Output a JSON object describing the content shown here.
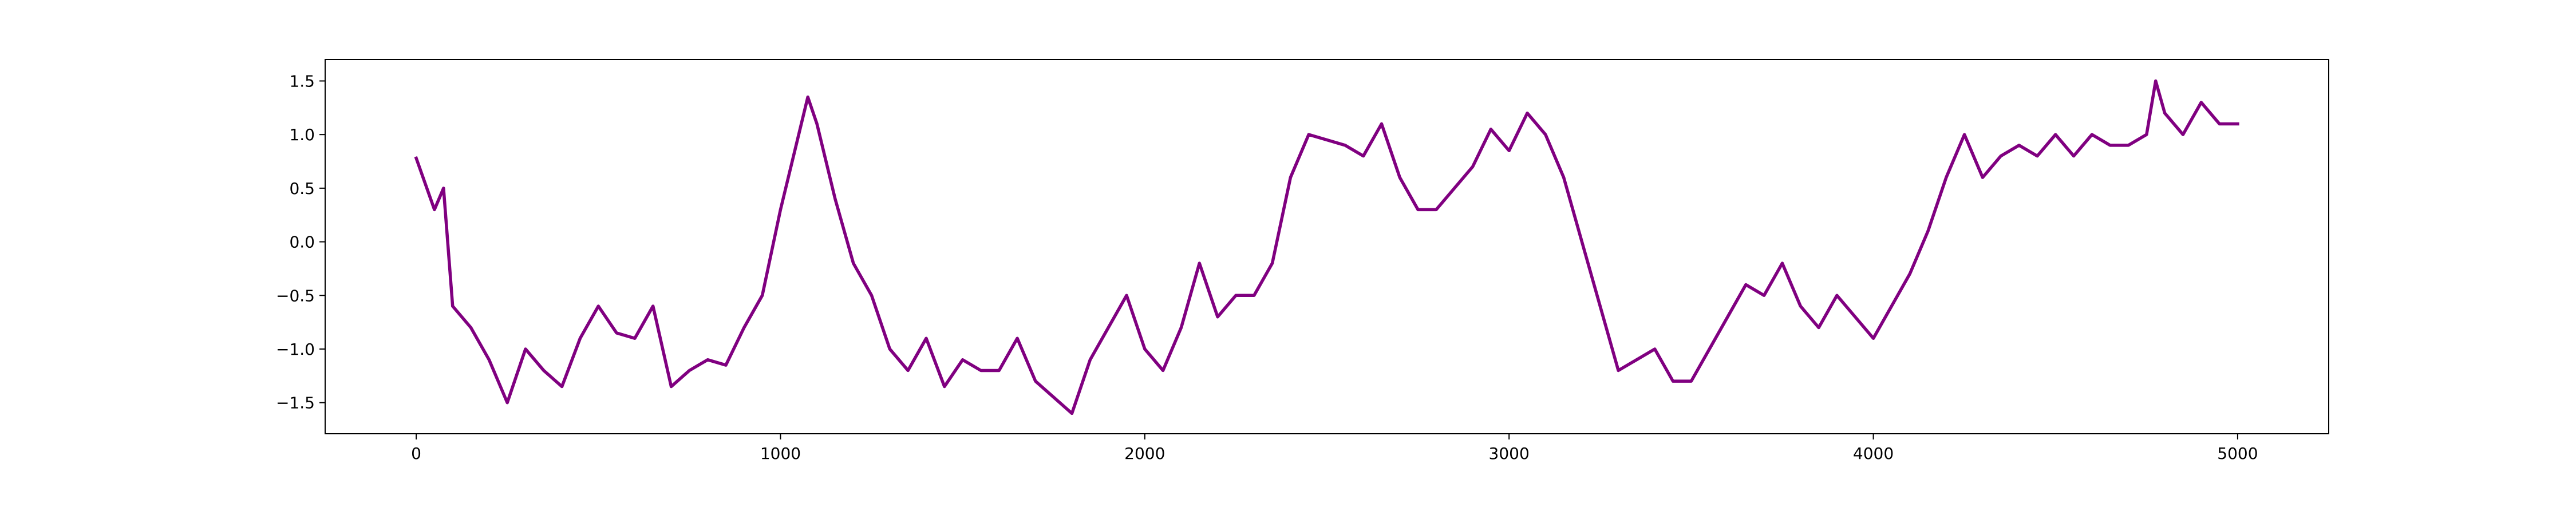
{
  "chart_data": {
    "type": "line",
    "x": [
      0,
      50,
      75,
      100,
      150,
      200,
      250,
      300,
      350,
      400,
      450,
      500,
      550,
      600,
      650,
      700,
      750,
      800,
      850,
      900,
      950,
      1000,
      1050,
      1075,
      1100,
      1150,
      1200,
      1250,
      1300,
      1350,
      1400,
      1450,
      1500,
      1550,
      1600,
      1650,
      1700,
      1750,
      1800,
      1850,
      1900,
      1950,
      2000,
      2050,
      2100,
      2150,
      2200,
      2250,
      2300,
      2350,
      2400,
      2450,
      2500,
      2550,
      2600,
      2650,
      2700,
      2750,
      2800,
      2850,
      2900,
      2950,
      3000,
      3050,
      3100,
      3150,
      3200,
      3250,
      3300,
      3350,
      3400,
      3450,
      3500,
      3550,
      3600,
      3650,
      3700,
      3750,
      3800,
      3850,
      3900,
      3950,
      4000,
      4050,
      4100,
      4150,
      4200,
      4250,
      4300,
      4350,
      4400,
      4450,
      4500,
      4550,
      4600,
      4650,
      4700,
      4750,
      4775,
      4800,
      4850,
      4900,
      4950,
      5000
    ],
    "series": [
      {
        "color": "#800080",
        "values": [
          0.78,
          0.3,
          0.5,
          -0.6,
          -0.8,
          -1.1,
          -1.5,
          -1.0,
          -1.2,
          -1.35,
          -0.9,
          -0.6,
          -0.85,
          -0.9,
          -0.6,
          -1.35,
          -1.2,
          -1.1,
          -1.15,
          -0.8,
          -0.5,
          0.3,
          1.0,
          1.35,
          1.1,
          0.4,
          -0.2,
          -0.5,
          -1.0,
          -1.2,
          -0.9,
          -1.35,
          -1.1,
          -1.2,
          -1.2,
          -0.9,
          -1.3,
          -1.45,
          -1.6,
          -1.1,
          -0.8,
          -0.5,
          -1.0,
          -1.2,
          -0.8,
          -0.2,
          -0.7,
          -0.5,
          -0.5,
          -0.2,
          0.6,
          1.0,
          0.95,
          0.9,
          0.8,
          1.1,
          0.6,
          0.3,
          0.3,
          0.5,
          0.7,
          1.05,
          0.85,
          1.2,
          1.0,
          0.6,
          0.0,
          -0.6,
          -1.2,
          -1.1,
          -1.0,
          -1.3,
          -1.3,
          -1.0,
          -0.7,
          -0.4,
          -0.5,
          -0.2,
          -0.6,
          -0.8,
          -0.5,
          -0.7,
          -0.9,
          -0.6,
          -0.3,
          0.1,
          0.6,
          1.0,
          0.6,
          0.8,
          0.9,
          0.8,
          1.0,
          0.8,
          1.0,
          0.9,
          0.9,
          1.0,
          1.5,
          1.2,
          1.0,
          1.3,
          1.1,
          1.1
        ]
      }
    ],
    "xlim": [
      -250,
      5250
    ],
    "ylim": [
      -1.79,
      1.7
    ],
    "xticks": [
      0,
      1000,
      2000,
      3000,
      4000,
      5000
    ],
    "yticks": [
      {
        "value": -1.5,
        "label": "−1.5"
      },
      {
        "value": -1.0,
        "label": "−1.0"
      },
      {
        "value": -0.5,
        "label": "−0.5"
      },
      {
        "value": 0.0,
        "label": "0.0"
      },
      0.5,
      {
        "value": 1.0,
        "label": "1.0"
      },
      1.5
    ],
    "grid": false
  }
}
